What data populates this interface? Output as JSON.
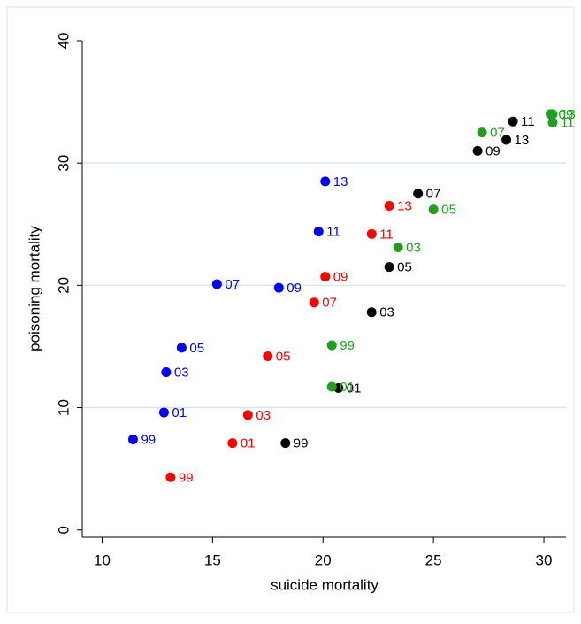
{
  "chart_data": {
    "type": "scatter",
    "x_label": "suicide mortality",
    "y_label": "poisoning mortality",
    "xlim": [
      9.1,
      31
    ],
    "ylim": [
      -0.6,
      40
    ],
    "xticks": [
      10,
      15,
      20,
      25,
      30
    ],
    "yticks": [
      0,
      10,
      20,
      30,
      40
    ],
    "grid": true,
    "series": [
      {
        "color": "#0000ff",
        "labels": [
          "99",
          "01",
          "03",
          "05",
          "07",
          "09",
          "11",
          "13"
        ],
        "x": [
          11.4,
          12.8,
          12.9,
          13.6,
          15.2,
          18.0,
          19.8,
          20.1
        ],
        "values": [
          7.4,
          9.6,
          12.9,
          14.9,
          20.1,
          19.8,
          24.4,
          28.5
        ]
      },
      {
        "color": "#ff0000",
        "labels": [
          "99",
          "01",
          "03",
          "05",
          "07",
          "09",
          "11",
          "13"
        ],
        "x": [
          13.1,
          15.9,
          16.6,
          17.5,
          19.6,
          20.1,
          22.2,
          23.0
        ],
        "values": [
          4.3,
          7.1,
          9.4,
          14.2,
          18.6,
          20.7,
          24.2,
          26.5
        ]
      },
      {
        "color": "#000000",
        "labels": [
          "99",
          "01",
          "03",
          "05",
          "07",
          "09",
          "11",
          "13"
        ],
        "x": [
          18.3,
          20.7,
          22.2,
          23.0,
          24.3,
          27.0,
          28.6,
          28.3
        ],
        "values": [
          7.1,
          11.6,
          17.8,
          21.5,
          27.5,
          31.0,
          33.4,
          31.9
        ]
      },
      {
        "color": "#1ea01e",
        "labels": [
          "99",
          "01",
          "03",
          "05",
          "07",
          "09",
          "11",
          "13"
        ],
        "x": [
          20.4,
          20.4,
          23.4,
          25.0,
          27.2,
          30.3,
          30.4,
          30.4
        ],
        "values": [
          15.1,
          11.7,
          23.1,
          26.2,
          32.5,
          34.0,
          33.3,
          34.0
        ]
      }
    ]
  }
}
